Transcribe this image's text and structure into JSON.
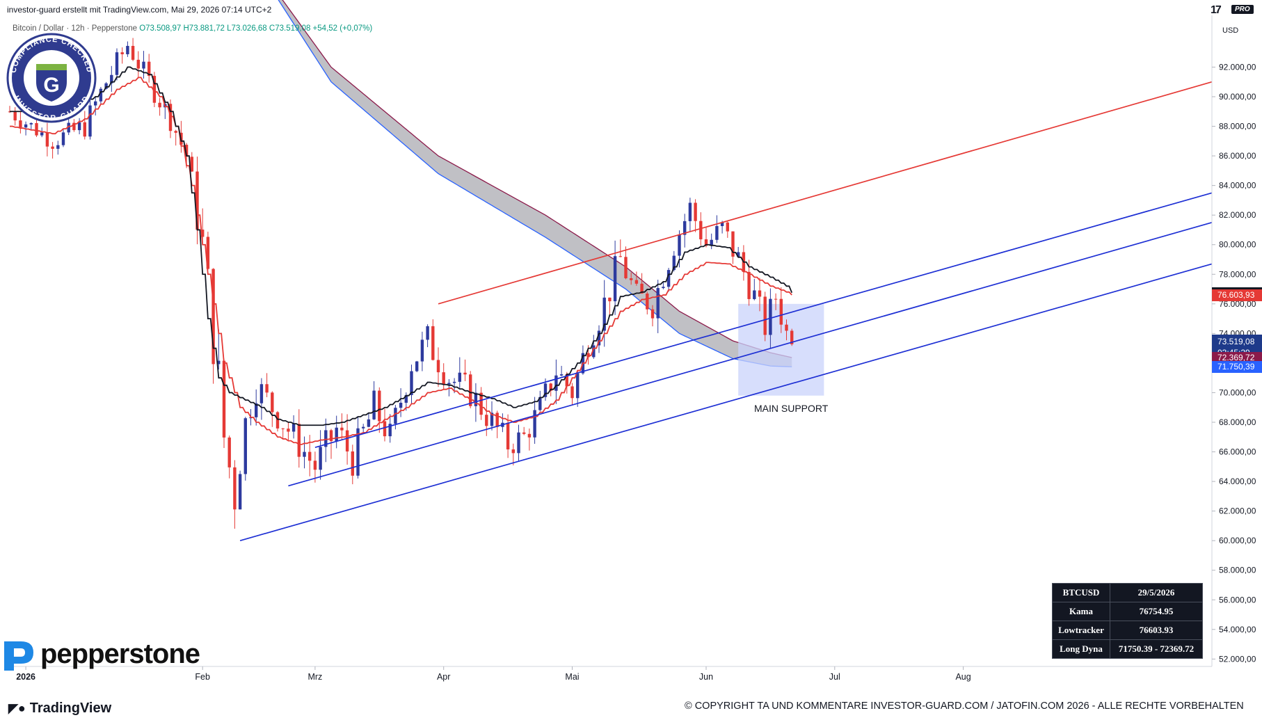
{
  "header": {
    "created_by": "investor-guard erstellt mit TradingView.com, Mai 29, 2026 07:14 UTC+2",
    "symbol_line_prefix": "Bitcoin / Dollar · 12h · Pepperstone",
    "ohlc": "O73.508,97 H73.881,72 L73.026,68 C73.519,08 +54,52 (+0,07%)",
    "currency": "USD",
    "tv_pro_glyph": "17",
    "tv_pro_badge": "PRO"
  },
  "chart_data": {
    "type": "candlestick",
    "interval": "12h",
    "title": "Bitcoin / Dollar · 12h · Pepperstone",
    "x_ticks": [
      "2026",
      "Feb",
      "Mrz",
      "Apr",
      "Mai",
      "Jun",
      "Jul",
      "Aug"
    ],
    "y_ticks": [
      "92.000,00",
      "90.000,00",
      "88.000,00",
      "86.000,00",
      "84.000,00",
      "82.000,00",
      "80.000,00",
      "78.000,00",
      "76.000,00",
      "74.000,00",
      "72.000,00",
      "70.000,00",
      "68.000,00",
      "66.000,00",
      "64.000,00",
      "62.000,00",
      "60.000,00",
      "58.000,00",
      "56.000,00",
      "54.000,00",
      "52.000,00"
    ],
    "ylim": [
      51500,
      95500
    ],
    "ohlc_last": {
      "open": 73508.97,
      "high": 73881.72,
      "low": 73026.68,
      "close": 73519.08,
      "change": 54.52,
      "change_pct": 0.07
    },
    "close_path": [
      [
        0,
        89000
      ],
      [
        8,
        87000
      ],
      [
        14,
        88000
      ],
      [
        18,
        91000
      ],
      [
        22,
        93500
      ],
      [
        26,
        91000
      ],
      [
        30,
        88500
      ],
      [
        33,
        86000
      ],
      [
        36,
        80000
      ],
      [
        38,
        74000
      ],
      [
        40,
        67000
      ],
      [
        42,
        63000
      ],
      [
        44,
        68000
      ],
      [
        46,
        70500
      ],
      [
        50,
        68500
      ],
      [
        54,
        66500
      ],
      [
        57,
        65000
      ],
      [
        61,
        67500
      ],
      [
        64,
        65500
      ],
      [
        68,
        69000
      ],
      [
        71,
        67000
      ],
      [
        75,
        72000
      ],
      [
        78,
        73500
      ],
      [
        82,
        71000
      ],
      [
        86,
        70000
      ],
      [
        90,
        68000
      ],
      [
        93,
        66500
      ],
      [
        96,
        67000
      ],
      [
        99,
        69000
      ],
      [
        102,
        71500
      ],
      [
        105,
        70000
      ],
      [
        108,
        73500
      ],
      [
        111,
        76000
      ],
      [
        114,
        79000
      ],
      [
        117,
        76500
      ],
      [
        120,
        76000
      ],
      [
        124,
        80000
      ],
      [
        127,
        82500
      ],
      [
        130,
        80000
      ],
      [
        133,
        81000
      ],
      [
        136,
        79000
      ],
      [
        139,
        76500
      ],
      [
        141,
        74500
      ],
      [
        143,
        76500
      ],
      [
        145,
        74000
      ],
      [
        146,
        73519
      ]
    ],
    "low_path": [
      [
        0,
        88000
      ],
      [
        8,
        86000
      ],
      [
        14,
        87000
      ],
      [
        18,
        90000
      ],
      [
        22,
        92500
      ],
      [
        26,
        89500
      ],
      [
        30,
        87000
      ],
      [
        33,
        84000
      ],
      [
        36,
        76000
      ],
      [
        38,
        68000
      ],
      [
        40,
        61800
      ],
      [
        42,
        61000
      ],
      [
        44,
        66000
      ],
      [
        46,
        68000
      ],
      [
        50,
        66500
      ],
      [
        54,
        64500
      ],
      [
        57,
        62500
      ],
      [
        61,
        65000
      ],
      [
        64,
        63000
      ],
      [
        68,
        67000
      ],
      [
        71,
        65000
      ],
      [
        75,
        70000
      ],
      [
        78,
        71500
      ],
      [
        82,
        69000
      ],
      [
        86,
        68000
      ],
      [
        90,
        66000
      ],
      [
        93,
        64800
      ],
      [
        96,
        65500
      ],
      [
        99,
        67500
      ],
      [
        102,
        69500
      ],
      [
        105,
        68500
      ],
      [
        108,
        71500
      ],
      [
        111,
        74000
      ],
      [
        114,
        77000
      ],
      [
        117,
        75000
      ],
      [
        120,
        74500
      ],
      [
        124,
        78500
      ],
      [
        127,
        80500
      ],
      [
        130,
        78500
      ],
      [
        133,
        79000
      ],
      [
        136,
        77000
      ],
      [
        139,
        74800
      ],
      [
        141,
        72500
      ],
      [
        143,
        74500
      ],
      [
        145,
        72300
      ],
      [
        146,
        73026
      ]
    ],
    "high_path": [
      [
        0,
        90500
      ],
      [
        8,
        88500
      ],
      [
        14,
        90000
      ],
      [
        18,
        93500
      ],
      [
        22,
        95000
      ],
      [
        26,
        92500
      ],
      [
        30,
        90000
      ],
      [
        33,
        87500
      ],
      [
        36,
        82000
      ],
      [
        38,
        77000
      ],
      [
        40,
        71000
      ],
      [
        42,
        67000
      ],
      [
        44,
        70000
      ],
      [
        46,
        72500
      ],
      [
        50,
        70500
      ],
      [
        54,
        68500
      ],
      [
        57,
        67000
      ],
      [
        61,
        69500
      ],
      [
        64,
        67500
      ],
      [
        68,
        71500
      ],
      [
        71,
        69000
      ],
      [
        75,
        74000
      ],
      [
        78,
        76000
      ],
      [
        82,
        73000
      ],
      [
        86,
        72000
      ],
      [
        90,
        70000
      ],
      [
        93,
        68500
      ],
      [
        96,
        69000
      ],
      [
        99,
        71000
      ],
      [
        102,
        73500
      ],
      [
        105,
        72000
      ],
      [
        108,
        75500
      ],
      [
        111,
        78500
      ],
      [
        114,
        81500
      ],
      [
        117,
        78500
      ],
      [
        120,
        78500
      ],
      [
        124,
        82000
      ],
      [
        127,
        84000
      ],
      [
        130,
        82000
      ],
      [
        133,
        83000
      ],
      [
        136,
        81000
      ],
      [
        139,
        78500
      ],
      [
        141,
        76500
      ],
      [
        143,
        78000
      ],
      [
        145,
        76000
      ],
      [
        146,
        73881
      ]
    ],
    "indicators": {
      "kama": {
        "label": "Kama",
        "value": "76.754,95",
        "color": "#131722",
        "path": [
          [
            0,
            89000
          ],
          [
            10,
            89000
          ],
          [
            16,
            90000
          ],
          [
            22,
            92000
          ],
          [
            26,
            91500
          ],
          [
            30,
            89000
          ],
          [
            33,
            86000
          ],
          [
            35,
            81000
          ],
          [
            37,
            75000
          ],
          [
            39,
            71000
          ],
          [
            41,
            70000
          ],
          [
            44,
            69500
          ],
          [
            47,
            69000
          ],
          [
            50,
            68200
          ],
          [
            54,
            67800
          ],
          [
            58,
            67800
          ],
          [
            62,
            68000
          ],
          [
            66,
            68500
          ],
          [
            70,
            69000
          ],
          [
            74,
            69800
          ],
          [
            78,
            70700
          ],
          [
            82,
            70500
          ],
          [
            86,
            70000
          ],
          [
            90,
            69600
          ],
          [
            94,
            69000
          ],
          [
            98,
            69400
          ],
          [
            102,
            70500
          ],
          [
            106,
            72000
          ],
          [
            110,
            74000
          ],
          [
            114,
            76500
          ],
          [
            118,
            76800
          ],
          [
            122,
            77500
          ],
          [
            126,
            79500
          ],
          [
            130,
            80000
          ],
          [
            134,
            79800
          ],
          [
            138,
            78500
          ],
          [
            142,
            77800
          ],
          [
            145,
            77200
          ],
          [
            146,
            76755
          ]
        ]
      },
      "lowtracker": {
        "label": "Lowtracker",
        "value": "76.603,93",
        "color": "#e53935",
        "path": [
          [
            0,
            88000
          ],
          [
            8,
            87500
          ],
          [
            14,
            88500
          ],
          [
            20,
            90500
          ],
          [
            24,
            91300
          ],
          [
            28,
            90000
          ],
          [
            31,
            88000
          ],
          [
            34,
            84000
          ],
          [
            37,
            78000
          ],
          [
            40,
            72000
          ],
          [
            43,
            69000
          ],
          [
            46,
            68000
          ],
          [
            50,
            67000
          ],
          [
            54,
            66500
          ],
          [
            58,
            66800
          ],
          [
            62,
            67000
          ],
          [
            66,
            67300
          ],
          [
            70,
            68200
          ],
          [
            74,
            69000
          ],
          [
            78,
            70000
          ],
          [
            82,
            70300
          ],
          [
            86,
            69500
          ],
          [
            90,
            68500
          ],
          [
            94,
            68000
          ],
          [
            98,
            68400
          ],
          [
            102,
            69500
          ],
          [
            106,
            71500
          ],
          [
            110,
            73500
          ],
          [
            114,
            75500
          ],
          [
            118,
            76300
          ],
          [
            122,
            76600
          ],
          [
            126,
            78000
          ],
          [
            130,
            78800
          ],
          [
            134,
            78700
          ],
          [
            138,
            78000
          ],
          [
            142,
            77200
          ],
          [
            145,
            76800
          ],
          [
            146,
            76604
          ]
        ]
      },
      "long_dyna": {
        "label": "Long Dyna",
        "value_low": "71.750,39",
        "value_high": "72.369,72",
        "color_upper": "#8b1a4a",
        "color_lower": "#2962ff",
        "upper": [
          [
            44,
            100000
          ],
          [
            60,
            92000
          ],
          [
            80,
            86000
          ],
          [
            100,
            82000
          ],
          [
            115,
            78500
          ],
          [
            125,
            75500
          ],
          [
            135,
            73500
          ],
          [
            142,
            72700
          ],
          [
            146,
            72370
          ]
        ],
        "lower": [
          [
            44,
            100000
          ],
          [
            60,
            91000
          ],
          [
            80,
            84800
          ],
          [
            100,
            80500
          ],
          [
            115,
            77000
          ],
          [
            125,
            74000
          ],
          [
            135,
            72300
          ],
          [
            142,
            71800
          ],
          [
            146,
            71750
          ]
        ]
      }
    },
    "channels": [
      {
        "name": "",
        "color": "#e53935",
        "from": [
          80,
          76000
        ],
        "to": [
          225,
          91000
        ]
      },
      {
        "name": "",
        "color": "#1d2fd4",
        "from": [
          57,
          66300
        ],
        "to": [
          225,
          83500
        ]
      },
      {
        "name": "",
        "color": "#1d2fd4",
        "from": [
          52,
          63700
        ],
        "to": [
          225,
          81500
        ]
      },
      {
        "name": "",
        "color": "#1d2fd4",
        "from": [
          43,
          60000
        ],
        "to": [
          225,
          78700
        ]
      }
    ],
    "support_zone": {
      "label": "MAIN SUPPORT",
      "x0": 136,
      "x1": 152,
      "y0": 69800,
      "y1": 76000
    },
    "price_labels": [
      {
        "value": "76.754,95",
        "color": "#131722",
        "price": 76755
      },
      {
        "value": "76.603,93",
        "color": "#e53935",
        "price": 76604
      },
      {
        "value": "73.519,08",
        "color": "#1e3a8a",
        "price": 73519,
        "countdown": "03:45:29"
      },
      {
        "value": "72.369,72",
        "color": "#8b1a4a",
        "price": 72370
      },
      {
        "value": "71.750,39",
        "color": "#2962ff",
        "price": 71750
      }
    ]
  },
  "info_table": {
    "rows": [
      [
        "BTCUSD",
        "29/5/2026"
      ],
      [
        "Kama",
        "76754.95"
      ],
      [
        "Lowtracker",
        "76603.93"
      ],
      [
        "Long Dyna",
        "71750.39 - 72369.72"
      ]
    ]
  },
  "badge": {
    "top_text": "COMPLIANCE CHECKED",
    "bottom_text": "INVESTOR-GUARD",
    "letter": "G"
  },
  "branding": {
    "pepperstone": "pepperstone",
    "tradingview": "TradingView",
    "copyright": "© COPYRIGHT TA UND KOMMENTARE INVESTOR-GUARD.COM / JATOFIN.COM 2026 - ALLE RECHTE VORBEHALTEN"
  }
}
